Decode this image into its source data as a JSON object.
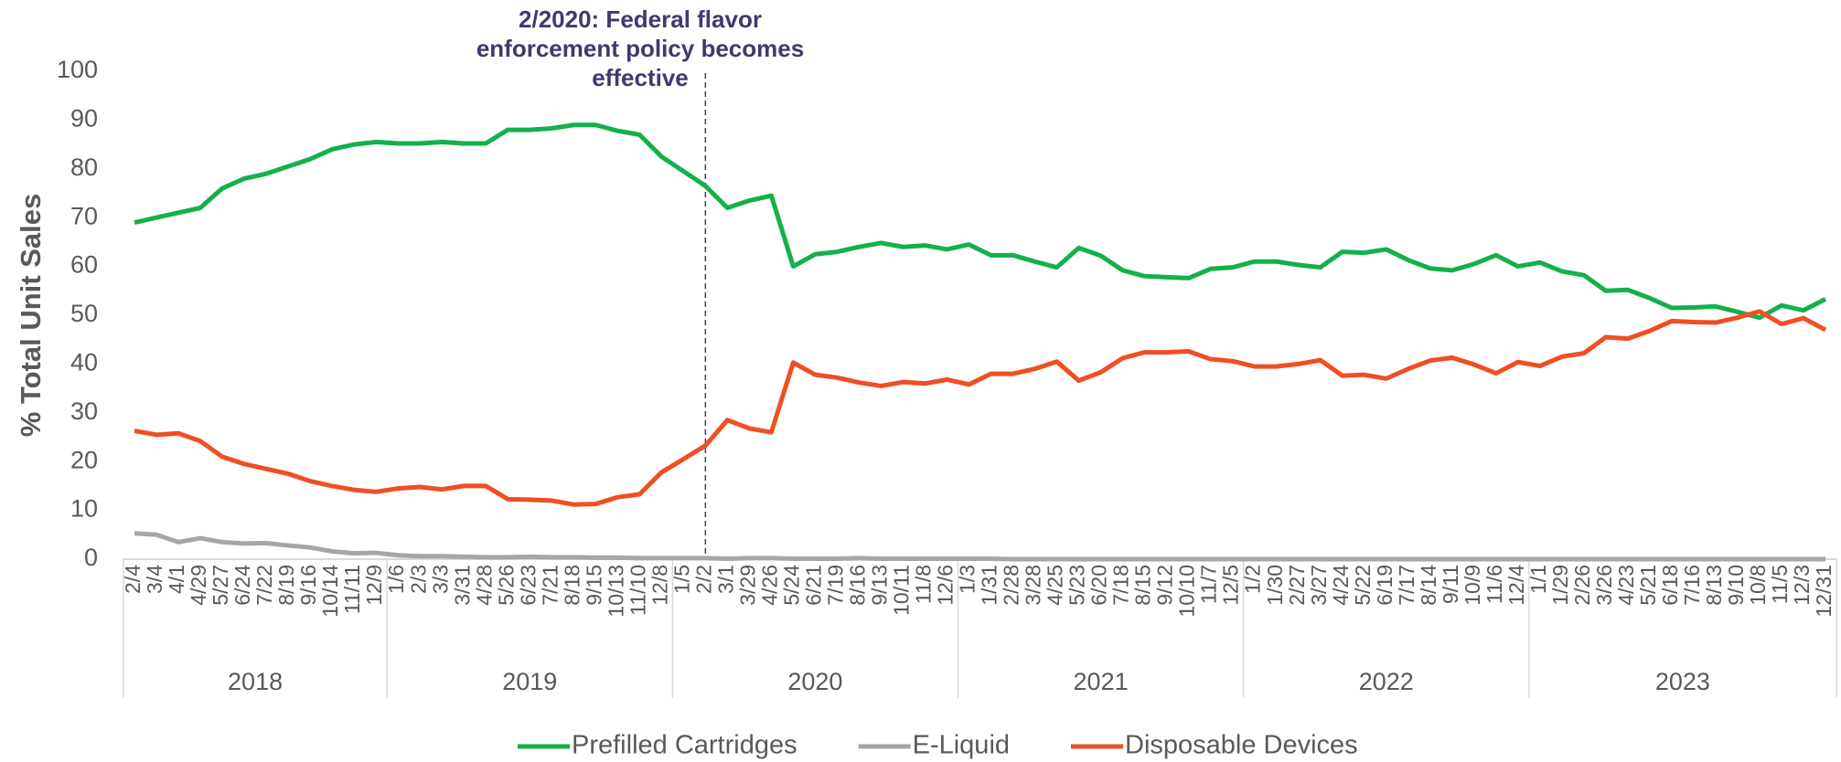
{
  "chart_data": {
    "type": "line",
    "y_label": "% Total Unit Sales",
    "annotation": [
      "2/2020: Federal flavor",
      "enforcement policy becomes",
      "effective"
    ],
    "years": [
      "2018",
      "2019",
      "2020",
      "2021",
      "2022",
      "2023"
    ],
    "categories": [
      "2/4",
      "3/4",
      "4/1",
      "4/29",
      "5/27",
      "6/24",
      "7/22",
      "8/19",
      "9/16",
      "10/14",
      "11/11",
      "12/9",
      "1/6",
      "2/3",
      "3/3",
      "3/31",
      "4/28",
      "5/26",
      "6/23",
      "7/21",
      "8/18",
      "9/15",
      "10/13",
      "11/10",
      "12/8",
      "1/5",
      "2/2",
      "3/1",
      "3/29",
      "4/26",
      "5/24",
      "6/21",
      "7/19",
      "8/16",
      "9/13",
      "10/11",
      "11/8",
      "12/6",
      "1/3",
      "1/31",
      "2/28",
      "3/28",
      "4/25",
      "5/23",
      "6/20",
      "7/18",
      "8/15",
      "9/12",
      "10/10",
      "11/7",
      "12/5",
      "1/2",
      "1/30",
      "2/27",
      "3/27",
      "4/24",
      "5/22",
      "6/19",
      "7/17",
      "8/14",
      "9/11",
      "10/9",
      "11/6",
      "12/4",
      "1/1",
      "1/29",
      "2/26",
      "3/26",
      "4/23",
      "5/21",
      "6/18",
      "7/16",
      "8/13",
      "9/10",
      "10/8",
      "11/5",
      "12/3",
      "12/31"
    ],
    "series": [
      {
        "name": "Prefilled Cartridges",
        "color": "#13b04b",
        "values": [
          69,
          70,
          71,
          72,
          76,
          78,
          79,
          80.5,
          82,
          84,
          85,
          85.5,
          85.2,
          85.2,
          85.5,
          85.2,
          85.2,
          88,
          88,
          88.3,
          89,
          89,
          87.8,
          87,
          82.5,
          79.5,
          76.5,
          72,
          73.5,
          74.5,
          60,
          62.5,
          63,
          64,
          64.8,
          64,
          64.3,
          63.5,
          64.5,
          62.3,
          62.3,
          61,
          59.8,
          63.8,
          62.2,
          59.2,
          58,
          57.8,
          57.6,
          59.5,
          59.8,
          61,
          61,
          60.3,
          59.8,
          63,
          62.8,
          63.5,
          61.3,
          59.6,
          59.2,
          60.5,
          62.3,
          60,
          60.8,
          59,
          58.2,
          55,
          55.2,
          53.5,
          51.5,
          51.6,
          51.8,
          50.7,
          49.5,
          52,
          51,
          53.3
        ]
      },
      {
        "name": "E-Liquid",
        "color": "#a6a6a6",
        "values": [
          5.3,
          5,
          3.5,
          4.3,
          3.5,
          3.2,
          3.3,
          2.8,
          2.4,
          1.6,
          1.2,
          1.3,
          0.8,
          0.6,
          0.6,
          0.5,
          0.4,
          0.4,
          0.5,
          0.4,
          0.4,
          0.3,
          0.3,
          0.2,
          0.2,
          0.2,
          0.2,
          0.1,
          0.2,
          0.2,
          0.1,
          0.1,
          0.1,
          0.2,
          0.1,
          0.1,
          0.1,
          0.1,
          0.1,
          0.1,
          0,
          0,
          0,
          0,
          0,
          0,
          0,
          0,
          0,
          0,
          0,
          0,
          0,
          0,
          0,
          0,
          0,
          0,
          0,
          0,
          0,
          0,
          0,
          0,
          0,
          0,
          0,
          0,
          0,
          0,
          0,
          0,
          0,
          0,
          0,
          0,
          0,
          0
        ]
      },
      {
        "name": "Disposable Devices",
        "color": "#f04e23",
        "values": [
          26.3,
          25.5,
          25.8,
          24.2,
          21,
          19.5,
          18.5,
          17.5,
          16,
          15,
          14.2,
          13.8,
          14.5,
          14.8,
          14.3,
          15,
          15,
          12.3,
          12.2,
          12,
          11.2,
          11.3,
          12.7,
          13.3,
          17.8,
          20.5,
          23.3,
          28.5,
          26.8,
          26,
          40.3,
          37.8,
          37.2,
          36.2,
          35.5,
          36.3,
          36,
          36.8,
          35.8,
          38,
          38,
          39,
          40.5,
          36.6,
          38.3,
          41.2,
          42.4,
          42.4,
          42.6,
          41,
          40.6,
          39.5,
          39.5,
          40,
          40.8,
          37.6,
          37.8,
          37,
          39,
          40.7,
          41.3,
          39.9,
          38.1,
          40.4,
          39.6,
          41.5,
          42.2,
          45.5,
          45.2,
          46.8,
          48.8,
          48.6,
          48.5,
          49.5,
          50.8,
          48.2,
          49.4,
          47
        ]
      }
    ],
    "ylim": [
      0,
      100
    ],
    "yticks": [
      0,
      10,
      20,
      30,
      40,
      50,
      60,
      70,
      80,
      90,
      100
    ],
    "grid": false,
    "legend": "bottom"
  }
}
